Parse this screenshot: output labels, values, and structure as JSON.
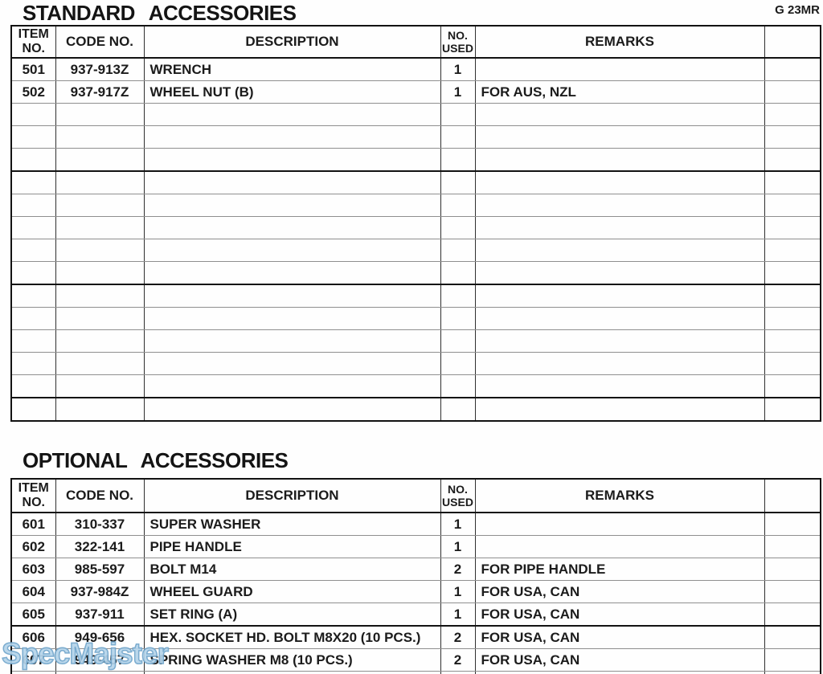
{
  "doc": {
    "code": "G 23MR",
    "watermark": "SpecMajster"
  },
  "columns": {
    "item": {
      "line1": "ITEM",
      "line2": "NO."
    },
    "code": {
      "label": "CODE NO."
    },
    "desc": {
      "label": "DESCRIPTION"
    },
    "used": {
      "line1": "NO.",
      "line2": "USED"
    },
    "remarks": {
      "label": "REMARKS"
    },
    "extra": {
      "label": ""
    }
  },
  "sections": [
    {
      "title": "STANDARD ACCESSORIES",
      "group_size": 5,
      "empty_rows": 14,
      "rows": [
        {
          "star": "",
          "item": "501",
          "code": "937-913Z",
          "desc": "WRENCH",
          "used": "1",
          "remarks": ""
        },
        {
          "star": "*",
          "item": "502",
          "code": "937-917Z",
          "desc": "WHEEL NUT (B)",
          "used": "1",
          "remarks": "FOR AUS, NZL"
        }
      ]
    },
    {
      "title": "OPTIONAL ACCESSORIES",
      "group_size": 5,
      "empty_rows": 1,
      "rows": [
        {
          "star": "",
          "item": "601",
          "code": "310-337",
          "desc": "SUPER WASHER",
          "used": "1",
          "remarks": ""
        },
        {
          "star": "",
          "item": "602",
          "code": "322-141",
          "desc": "PIPE HANDLE",
          "used": "1",
          "remarks": ""
        },
        {
          "star": "",
          "item": "603",
          "code": "985-597",
          "desc": "BOLT M14",
          "used": "2",
          "remarks": "FOR PIPE HANDLE"
        },
        {
          "star": "*",
          "item": "604",
          "code": "937-984Z",
          "desc": "WHEEL GUARD",
          "used": "1",
          "remarks": "FOR USA, CAN"
        },
        {
          "star": "*",
          "item": "605",
          "code": "937-911",
          "desc": "SET RING (A)",
          "used": "1",
          "remarks": "FOR USA, CAN"
        },
        {
          "star": "*",
          "item": "606",
          "code": "949-656",
          "desc": "HEX. SOCKET HD. BOLT M8X20 (10 PCS.)",
          "used": "2",
          "remarks": "FOR USA, CAN"
        },
        {
          "star": "*",
          "item": "607",
          "code": "949-457",
          "desc": "SPRING WASHER M8 (10 PCS.)",
          "used": "2",
          "remarks": "FOR USA, CAN"
        }
      ]
    }
  ]
}
